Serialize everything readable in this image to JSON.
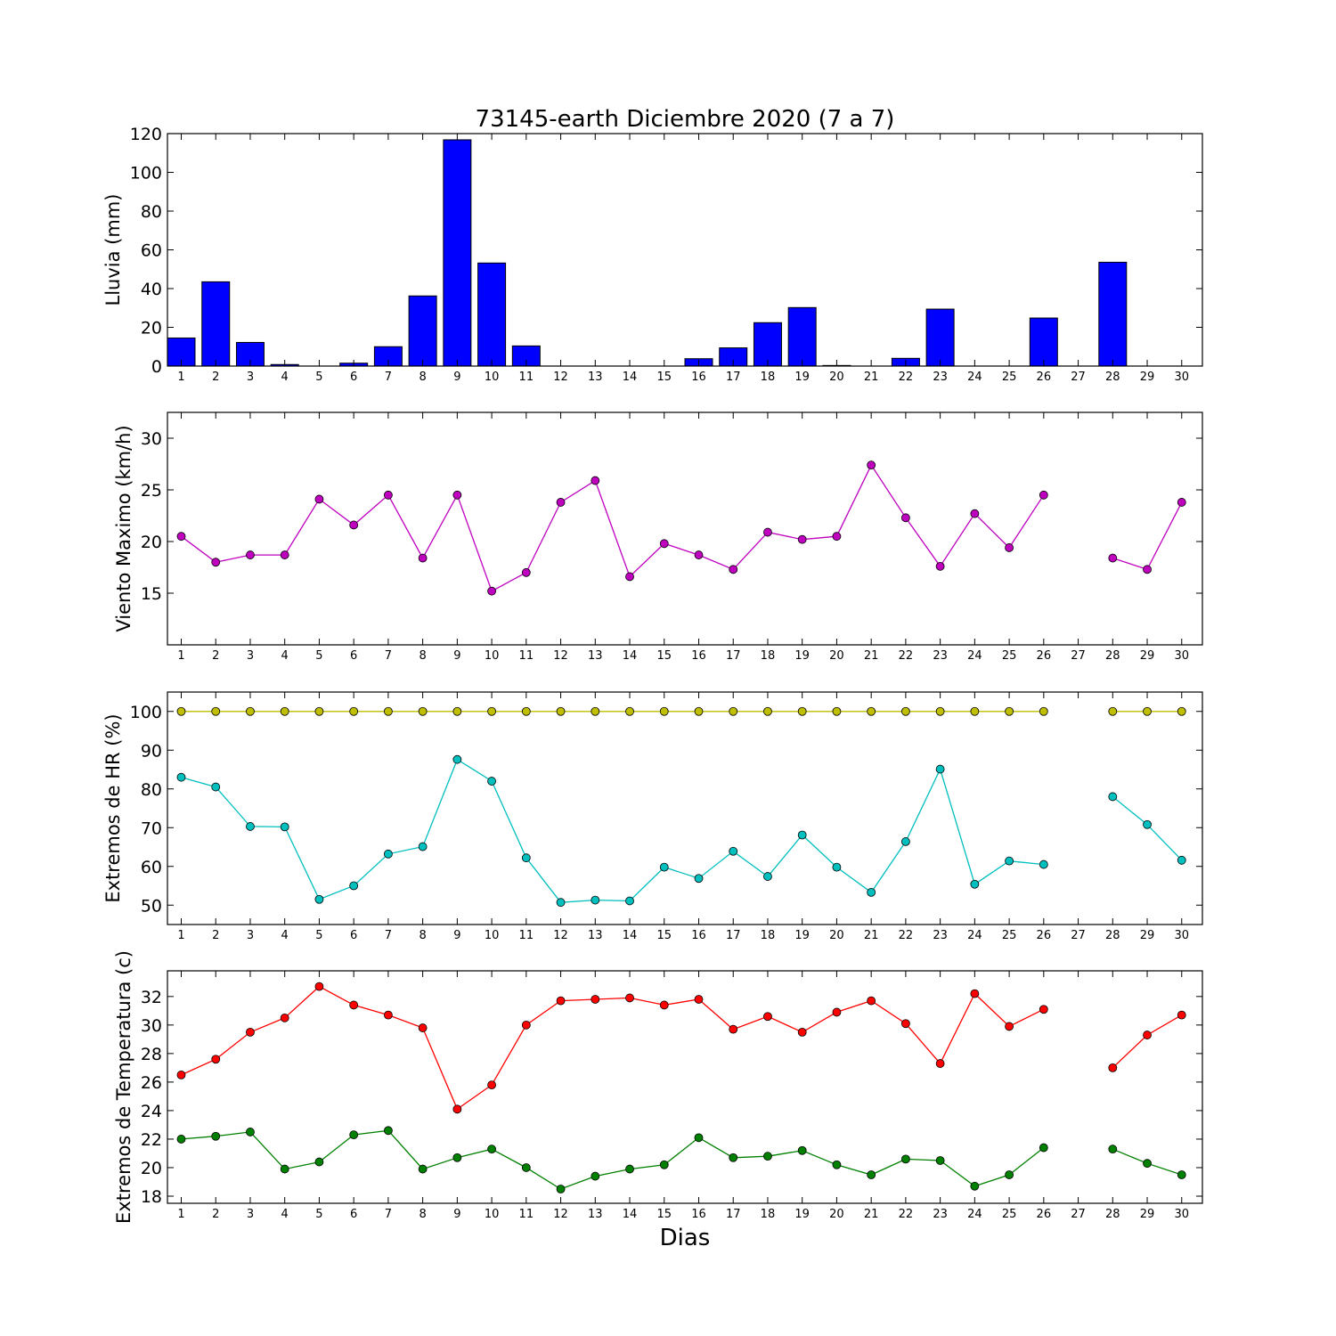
{
  "chart_data": [
    {
      "type": "bar",
      "title": "73145-earth Diciembre 2020  (7 a 7)",
      "xlabel": "",
      "ylabel": "Lluvia (mm)",
      "ylim": [
        0,
        120
      ],
      "yticks": [
        0,
        20,
        40,
        60,
        80,
        100,
        120
      ],
      "categories": [
        "1",
        "2",
        "3",
        "4",
        "5",
        "6",
        "7",
        "8",
        "9",
        "10",
        "11",
        "12",
        "13",
        "14",
        "15",
        "16",
        "17",
        "18",
        "19",
        "20",
        "21",
        "22",
        "23",
        "24",
        "25",
        "26",
        "27",
        "28",
        "29",
        "30"
      ],
      "values": [
        14.5,
        43.5,
        12.2,
        0.8,
        0,
        1.5,
        10,
        36.2,
        116.8,
        53.2,
        10.4,
        0,
        0,
        0,
        0,
        3.8,
        9.4,
        22.4,
        30.2,
        0.3,
        0,
        4,
        29.4,
        0,
        0,
        24.8,
        0,
        53.6,
        0,
        0
      ],
      "colors": {
        "bar": "#0000ff",
        "edge": "#000000"
      }
    },
    {
      "type": "line",
      "xlabel": "",
      "ylabel": "Viento Maximo (km/h)",
      "ylim": [
        10,
        32.5
      ],
      "yticks": [
        15,
        20,
        25,
        30
      ],
      "x": [
        1,
        2,
        3,
        4,
        5,
        6,
        7,
        8,
        9,
        10,
        11,
        12,
        13,
        14,
        15,
        16,
        17,
        18,
        19,
        20,
        21,
        22,
        23,
        24,
        25,
        26,
        27,
        28,
        29,
        30
      ],
      "series": [
        {
          "values": [
            20.5,
            18.0,
            18.7,
            18.7,
            24.1,
            21.6,
            24.5,
            18.4,
            24.5,
            15.2,
            17.0,
            23.8,
            25.9,
            16.6,
            19.8,
            18.7,
            17.3,
            20.9,
            20.2,
            20.5,
            27.4,
            22.3,
            17.6,
            22.7,
            19.4,
            24.5,
            null,
            18.4,
            17.3,
            23.8
          ],
          "color": "#bf00bf"
        }
      ]
    },
    {
      "type": "line",
      "xlabel": "",
      "ylabel": "Extremos de HR (%)",
      "ylim": [
        45,
        105
      ],
      "yticks": [
        50,
        60,
        70,
        80,
        90,
        100
      ],
      "x": [
        1,
        2,
        3,
        4,
        5,
        6,
        7,
        8,
        9,
        10,
        11,
        12,
        13,
        14,
        15,
        16,
        17,
        18,
        19,
        20,
        21,
        22,
        23,
        24,
        25,
        26,
        27,
        28,
        29,
        30
      ],
      "series": [
        {
          "values": [
            100,
            100,
            100,
            100,
            100,
            100,
            100,
            100,
            100,
            100,
            100,
            100,
            100,
            100,
            100,
            100,
            100,
            100,
            100,
            100,
            100,
            100,
            100,
            100,
            100,
            100,
            null,
            100,
            100,
            100
          ],
          "color": "#bfbf00"
        },
        {
          "values": [
            83,
            80.5,
            70.3,
            70.2,
            51.5,
            55,
            63.2,
            65.1,
            87.6,
            82,
            62.2,
            50.7,
            51.3,
            51.1,
            59.8,
            56.9,
            63.9,
            57.4,
            68.1,
            59.8,
            53.3,
            66.4,
            85.1,
            55.4,
            61.4,
            60.5,
            null,
            78,
            70.8,
            61.6
          ],
          "color": "#00bfbf"
        }
      ]
    },
    {
      "type": "line",
      "xlabel": "Dias",
      "ylabel": "Extremos de Temperatura (c)",
      "ylim": [
        17.5,
        33.8
      ],
      "yticks": [
        18,
        20,
        22,
        24,
        26,
        28,
        30,
        32
      ],
      "x": [
        1,
        2,
        3,
        4,
        5,
        6,
        7,
        8,
        9,
        10,
        11,
        12,
        13,
        14,
        15,
        16,
        17,
        18,
        19,
        20,
        21,
        22,
        23,
        24,
        25,
        26,
        27,
        28,
        29,
        30
      ],
      "series": [
        {
          "values": [
            26.5,
            27.6,
            29.5,
            30.5,
            32.7,
            31.4,
            30.7,
            29.8,
            24.1,
            25.8,
            30.0,
            31.7,
            31.8,
            31.9,
            31.4,
            31.8,
            29.7,
            30.6,
            29.5,
            30.9,
            31.7,
            30.1,
            27.3,
            32.2,
            29.9,
            31.1,
            null,
            27.0,
            29.3,
            30.7
          ],
          "color": "#ff0000"
        },
        {
          "values": [
            22.0,
            22.2,
            22.5,
            19.9,
            20.4,
            22.3,
            22.6,
            19.9,
            20.7,
            21.3,
            20.0,
            18.5,
            19.4,
            19.9,
            20.2,
            22.1,
            20.7,
            20.8,
            21.2,
            20.2,
            19.5,
            20.6,
            20.5,
            18.7,
            19.5,
            21.4,
            null,
            21.3,
            20.3,
            19.5
          ],
          "color": "#008000"
        }
      ]
    }
  ]
}
